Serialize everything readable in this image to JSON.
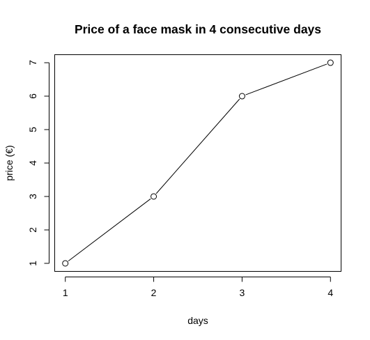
{
  "chart_data": {
    "type": "line",
    "title": "Price of a face mask in 4 consecutive days",
    "xlabel": "days",
    "ylabel": "price (€)",
    "x": [
      1,
      2,
      3,
      4
    ],
    "series": [
      {
        "values": [
          1,
          3,
          6,
          7
        ]
      }
    ],
    "xlim": [
      0.88,
      4.12
    ],
    "ylim": [
      0.76,
      7.24
    ],
    "xticks": [
      1,
      2,
      3,
      4
    ],
    "yticks": [
      1,
      2,
      3,
      4,
      5,
      6,
      7
    ],
    "grid": false,
    "markers": "open-circle",
    "colors": {
      "line": "#000000",
      "marker_fill": "#ffffff"
    }
  }
}
